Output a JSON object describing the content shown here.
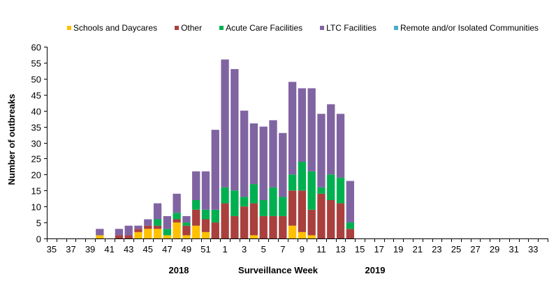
{
  "chart_data": {
    "type": "bar",
    "stacked": true,
    "title": "",
    "xlabel": "Surveillance Week",
    "ylabel": "Number of outbreaks",
    "year_labels": [
      "2018",
      "2019"
    ],
    "ylim": [
      0,
      60
    ],
    "yticks": [
      0,
      5,
      10,
      15,
      20,
      25,
      30,
      35,
      40,
      45,
      50,
      55,
      60
    ],
    "grid": false,
    "legend_position": "top",
    "categories": [
      "35",
      "36",
      "37",
      "38",
      "39",
      "40",
      "41",
      "42",
      "43",
      "44",
      "45",
      "46",
      "47",
      "48",
      "49",
      "50",
      "51",
      "52",
      "1",
      "2",
      "3",
      "4",
      "5",
      "6",
      "7",
      "8",
      "9",
      "10",
      "11",
      "12",
      "13",
      "14",
      "15",
      "16",
      "17",
      "18",
      "19",
      "20",
      "21",
      "22",
      "23",
      "24",
      "25",
      "26",
      "27",
      "28",
      "29",
      "30",
      "31",
      "32",
      "33",
      "34"
    ],
    "series": [
      {
        "name": "Schools and Daycares",
        "color": "#FFC000",
        "values": [
          0,
          0,
          0,
          0,
          0,
          1,
          0,
          0,
          0,
          2,
          3,
          3,
          1,
          5,
          1,
          4,
          2,
          0,
          0,
          0,
          0,
          1,
          0,
          0,
          0,
          4,
          2,
          1,
          0,
          0,
          0,
          0,
          0,
          0,
          0,
          0,
          0,
          0,
          0,
          0,
          0,
          0,
          0,
          0,
          0,
          0,
          0,
          0,
          0,
          0,
          0,
          0
        ]
      },
      {
        "name": "Other",
        "color": "#A9403D",
        "values": [
          0,
          0,
          0,
          0,
          0,
          0,
          0,
          1,
          1,
          1,
          1,
          1,
          0,
          1,
          3,
          5,
          4,
          5,
          11,
          7,
          10,
          10,
          7,
          7,
          7,
          11,
          13,
          8,
          14,
          12,
          11,
          3,
          0,
          0,
          0,
          0,
          0,
          0,
          0,
          0,
          0,
          0,
          0,
          0,
          0,
          0,
          0,
          0,
          0,
          0,
          0,
          0
        ]
      },
      {
        "name": "Acute Care Facilities",
        "color": "#00B050",
        "values": [
          0,
          0,
          0,
          0,
          0,
          0,
          0,
          0,
          0,
          0,
          0,
          2,
          2,
          2,
          1,
          3,
          3,
          4,
          5,
          8,
          3,
          6,
          5,
          9,
          6,
          5,
          9,
          12,
          2,
          8,
          8,
          2,
          0,
          0,
          0,
          0,
          0,
          0,
          0,
          0,
          0,
          0,
          0,
          0,
          0,
          0,
          0,
          0,
          0,
          0,
          0,
          0
        ]
      },
      {
        "name": "LTC Facilities",
        "color": "#8064A2",
        "values": [
          0,
          0,
          0,
          0,
          0,
          2,
          0,
          2,
          3,
          1,
          2,
          5,
          4,
          6,
          2,
          9,
          12,
          25,
          40,
          38,
          27,
          19,
          23,
          21,
          20,
          29,
          23,
          26,
          23,
          22,
          20,
          13,
          0,
          0,
          0,
          0,
          0,
          0,
          0,
          0,
          0,
          0,
          0,
          0,
          0,
          0,
          0,
          0,
          0,
          0,
          0,
          0
        ]
      },
      {
        "name": "Remote and/or Isolated Communities",
        "color": "#4BACC6",
        "values": [
          0,
          0,
          0,
          0,
          0,
          0,
          0,
          0,
          0,
          0,
          0,
          0,
          0,
          0,
          0,
          0,
          0,
          0,
          0,
          0,
          0,
          0,
          0,
          0,
          0,
          0,
          0,
          0,
          0,
          0,
          0,
          0,
          0,
          0,
          0,
          0,
          0,
          0,
          0,
          0,
          0,
          0,
          0,
          0,
          0,
          0,
          0,
          0,
          0,
          0,
          0,
          0
        ]
      }
    ],
    "totals": [
      0,
      0,
      0,
      0,
      0,
      3,
      0,
      3,
      4,
      4,
      6,
      11,
      7,
      14,
      7,
      21,
      21,
      34,
      56,
      53,
      40,
      36,
      35,
      37,
      33,
      49,
      47,
      47,
      39,
      42,
      39,
      18,
      0,
      0,
      0,
      0,
      0,
      0,
      0,
      0,
      0,
      0,
      0,
      0,
      0,
      0,
      0,
      0,
      0,
      0,
      0,
      0
    ]
  }
}
